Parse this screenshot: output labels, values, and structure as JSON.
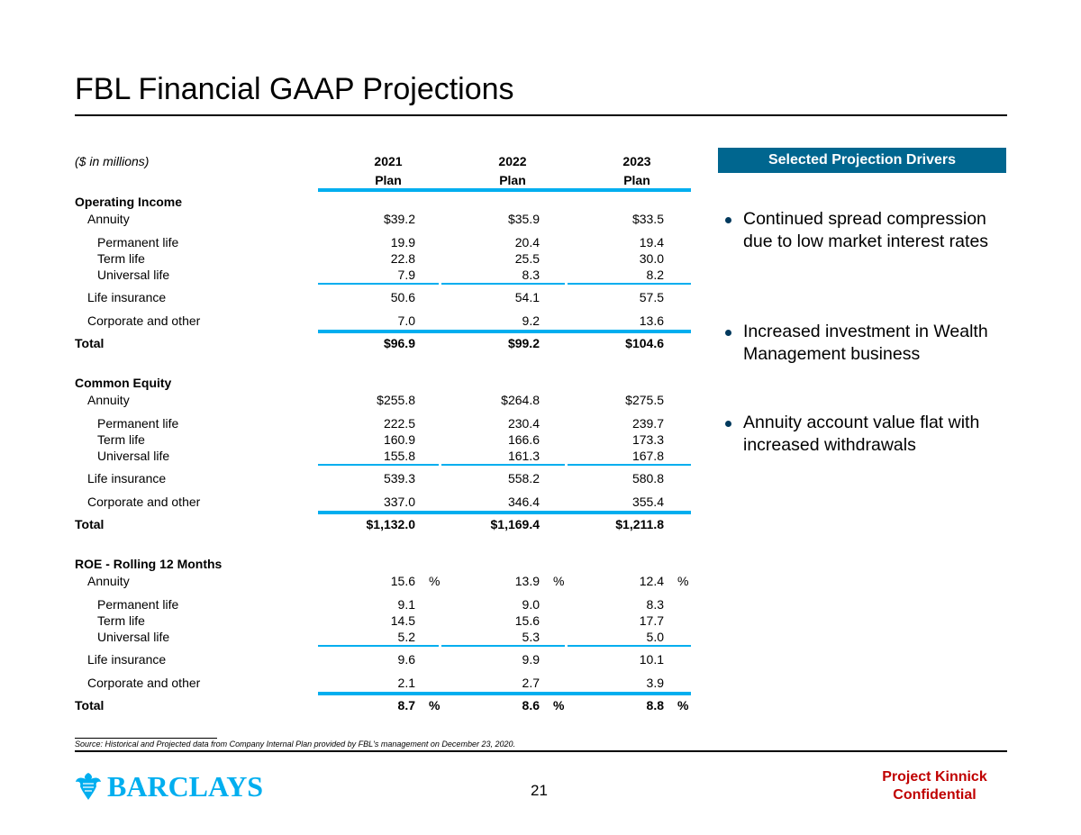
{
  "title": "FBL Financial GAAP Projections",
  "table": {
    "units_label": "($ in millions)",
    "columns": [
      {
        "year": "2021",
        "sub": "Plan"
      },
      {
        "year": "2022",
        "sub": "Plan"
      },
      {
        "year": "2023",
        "sub": "Plan"
      }
    ],
    "sections": [
      {
        "heading": "Operating Income",
        "percent": false,
        "rows": [
          {
            "label": "Annuity",
            "values": [
              "$39.2",
              "$35.9",
              "$33.5"
            ]
          },
          {
            "label": "Permanent life",
            "values": [
              "19.9",
              "20.4",
              "19.4"
            ]
          },
          {
            "label": "Term life",
            "values": [
              "22.8",
              "25.5",
              "30.0"
            ]
          },
          {
            "label": "Universal  life",
            "values": [
              "7.9",
              "8.3",
              "8.2"
            ]
          },
          {
            "label": "Life insurance",
            "values": [
              "50.6",
              "54.1",
              "57.5"
            ]
          },
          {
            "label": "Corporate and other",
            "values": [
              "7.0",
              "9.2",
              "13.6"
            ]
          },
          {
            "label": "Total",
            "values": [
              "$96.9",
              "$99.2",
              "$104.6"
            ]
          }
        ]
      },
      {
        "heading": "Common Equity",
        "percent": false,
        "rows": [
          {
            "label": "Annuity",
            "values": [
              "$255.8",
              "$264.8",
              "$275.5"
            ]
          },
          {
            "label": "Permanent life",
            "values": [
              "222.5",
              "230.4",
              "239.7"
            ]
          },
          {
            "label": "Term life",
            "values": [
              "160.9",
              "166.6",
              "173.3"
            ]
          },
          {
            "label": "Universal life",
            "values": [
              "155.8",
              "161.3",
              "167.8"
            ]
          },
          {
            "label": "Life insurance",
            "values": [
              "539.3",
              "558.2",
              "580.8"
            ]
          },
          {
            "label": "Corporate and other",
            "values": [
              "337.0",
              "346.4",
              "355.4"
            ]
          },
          {
            "label": "Total",
            "values": [
              "$1,132.0",
              "$1,169.4",
              "$1,211.8"
            ]
          }
        ]
      },
      {
        "heading": "ROE - Rolling 12 Months",
        "percent": true,
        "percent_sign": "%",
        "rows": [
          {
            "label": "Annuity",
            "values": [
              "15.6",
              "13.9",
              "12.4"
            ]
          },
          {
            "label": "Permanent life",
            "values": [
              "9.1",
              "9.0",
              "8.3"
            ]
          },
          {
            "label": "Term life",
            "values": [
              "14.5",
              "15.6",
              "17.7"
            ]
          },
          {
            "label": "Universal life",
            "values": [
              "5.2",
              "5.3",
              "5.0"
            ]
          },
          {
            "label": "Life insurance",
            "values": [
              "9.6",
              "9.9",
              "10.1"
            ]
          },
          {
            "label": "Corporate and other",
            "values": [
              "2.1",
              "2.7",
              "3.9"
            ]
          },
          {
            "label": "Total",
            "values": [
              "8.7",
              "8.6",
              "8.8"
            ]
          }
        ]
      }
    ]
  },
  "drivers": {
    "heading": "Selected Projection Drivers",
    "bullets": [
      "Continued spread compression due to low market interest rates",
      "Increased investment in Wealth Management business",
      "Annuity account value flat with increased withdrawals"
    ]
  },
  "source": "Source: Historical and Projected data from Company Internal Plan provided by FBL's management on December 23, 2020.",
  "footer": {
    "logo_text": "BARCLAYS",
    "page_number": "21",
    "confidential": "Project Kinnick Confidential"
  },
  "colors": {
    "accent": "#00aeef",
    "header_fill": "#00668f",
    "confidential": "#c00000"
  }
}
